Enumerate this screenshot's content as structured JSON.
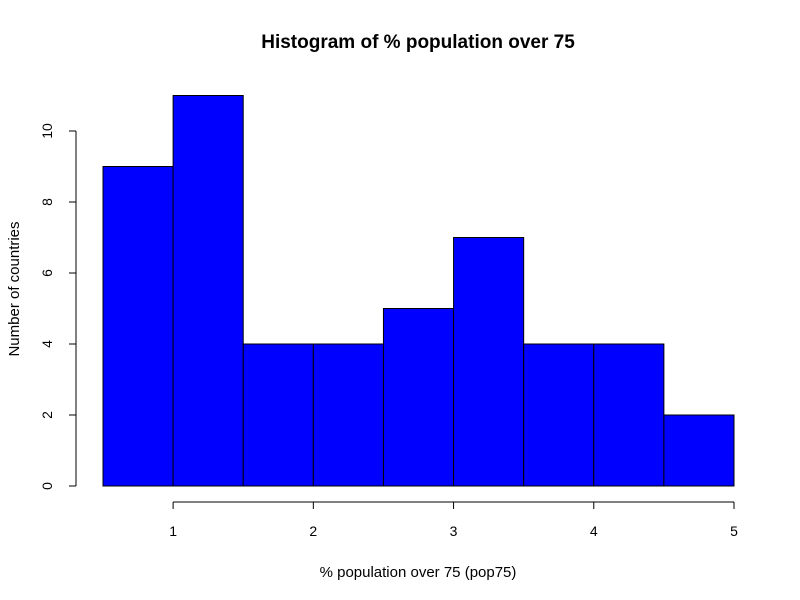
{
  "chart_data": {
    "type": "bar",
    "title": "Histogram of % population over 75",
    "xlabel": "% population over 75 (pop75)",
    "ylabel": "Number of countries",
    "bins": [
      {
        "start": 0.5,
        "end": 1.0,
        "count": 9
      },
      {
        "start": 1.0,
        "end": 1.5,
        "count": 11
      },
      {
        "start": 1.5,
        "end": 2.0,
        "count": 4
      },
      {
        "start": 2.0,
        "end": 2.5,
        "count": 4
      },
      {
        "start": 2.5,
        "end": 3.0,
        "count": 5
      },
      {
        "start": 3.0,
        "end": 3.5,
        "count": 7
      },
      {
        "start": 3.5,
        "end": 4.0,
        "count": 4
      },
      {
        "start": 4.0,
        "end": 4.5,
        "count": 4
      },
      {
        "start": 4.5,
        "end": 5.0,
        "count": 2
      }
    ],
    "x_ticks": [
      1,
      2,
      3,
      4,
      5
    ],
    "y_ticks": [
      0,
      2,
      4,
      6,
      8,
      10
    ],
    "xlim": [
      0.5,
      5.0
    ],
    "ylim": [
      0,
      11
    ],
    "bar_color": "#0000ff",
    "grid": false
  }
}
